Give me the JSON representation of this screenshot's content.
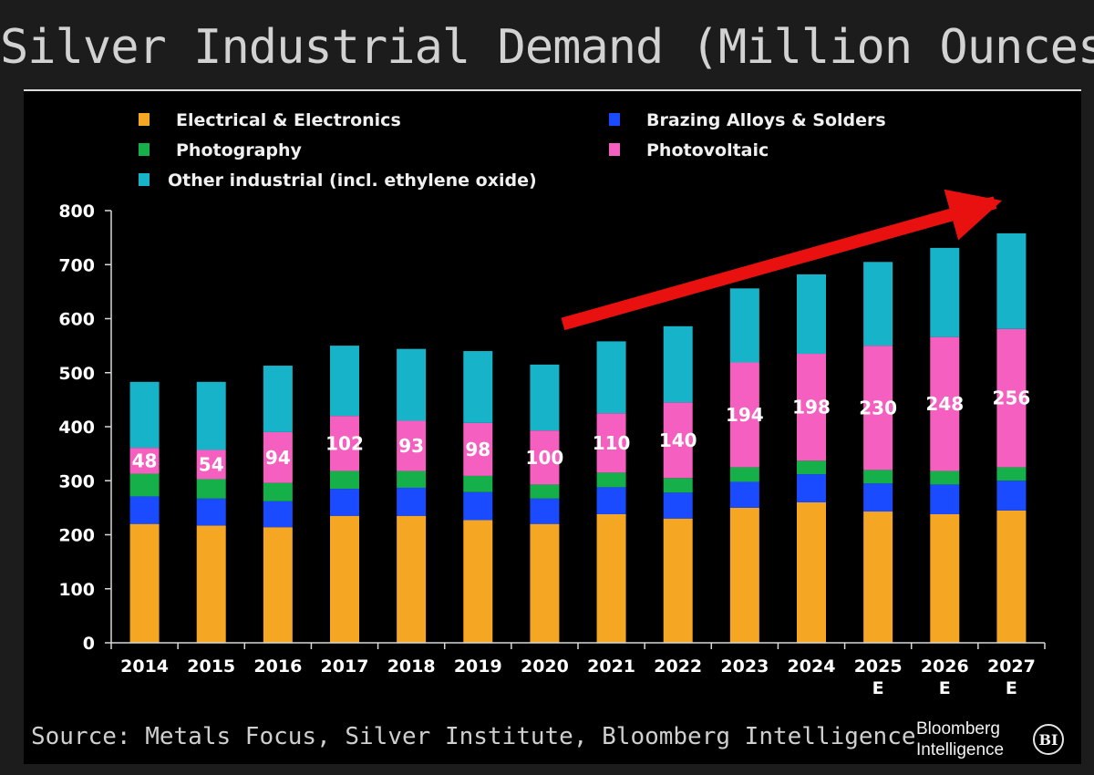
{
  "title": "Silver Industrial Demand (Million Ounces)",
  "source": "Source: Metals Focus, Silver Institute, Bloomberg Intelligence",
  "brand": {
    "line1": "Bloomberg",
    "line2": "Intelligence",
    "badge": "BI"
  },
  "chart_data": {
    "type": "bar",
    "stacked": true,
    "title": "Silver Industrial Demand (Million Ounces)",
    "xlabel": "",
    "ylabel": "",
    "ylim": [
      0,
      800
    ],
    "yticks": [
      0,
      100,
      200,
      300,
      400,
      500,
      600,
      700,
      800
    ],
    "grid": false,
    "legend_position": "top",
    "categories": [
      "2014",
      "2015",
      "2016",
      "2017",
      "2018",
      "2019",
      "2020",
      "2021",
      "2022",
      "2023",
      "2024",
      "2025 E",
      "2026 E",
      "2027 E"
    ],
    "series": [
      {
        "name": "Electrical & Electronics",
        "color": "#f5a623",
        "values": [
          220,
          217,
          214,
          235,
          235,
          227,
          220,
          238,
          230,
          250,
          260,
          243,
          238,
          245
        ]
      },
      {
        "name": "Brazing Alloys & Solders",
        "color": "#1a4bff",
        "values": [
          51,
          50,
          48,
          50,
          52,
          52,
          47,
          50,
          48,
          48,
          52,
          52,
          55,
          55
        ]
      },
      {
        "name": "Photography",
        "color": "#16b04a",
        "values": [
          42,
          36,
          34,
          33,
          31,
          30,
          26,
          27,
          27,
          27,
          25,
          25,
          25,
          25
        ]
      },
      {
        "name": "Photovoltaic",
        "color": "#f55fbf",
        "values": [
          48,
          54,
          94,
          102,
          93,
          98,
          100,
          110,
          140,
          194,
          198,
          230,
          248,
          256
        ]
      },
      {
        "name": "Other industrial (incl. ethylene oxide)",
        "color": "#17b3c9",
        "values": [
          122,
          126,
          123,
          130,
          133,
          133,
          122,
          133,
          141,
          137,
          147,
          155,
          165,
          177
        ]
      }
    ],
    "data_labels_series": "Photovoltaic",
    "annotation": {
      "type": "arrow",
      "color": "#e8110f",
      "from": [
        "2020",
        590
      ],
      "to": [
        "2027 E",
        815
      ]
    }
  }
}
